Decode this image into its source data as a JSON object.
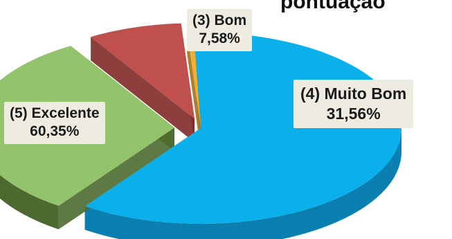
{
  "chart_data": {
    "type": "pie",
    "style": "3d-exploded",
    "title": "pontuação",
    "slices": [
      {
        "category": "(5) Excelente",
        "value": 60.35,
        "label_value": "60,35%",
        "color": "#0bb0ea",
        "side_color": "#0a7fb0"
      },
      {
        "category": "(4) Muito Bom",
        "value": 31.56,
        "label_value": "31,56%",
        "color": "#93c36b",
        "side_color": "#4c6a30"
      },
      {
        "category": "(3) Bom",
        "value": 7.58,
        "label_value": "7,58%",
        "color": "#c0504d",
        "side_color": "#7f2a28"
      },
      {
        "category": "",
        "value": 0.51,
        "label_value": "",
        "color": "#f2b134",
        "side_color": "#a87312"
      }
    ],
    "label_background": "#eeece1"
  }
}
